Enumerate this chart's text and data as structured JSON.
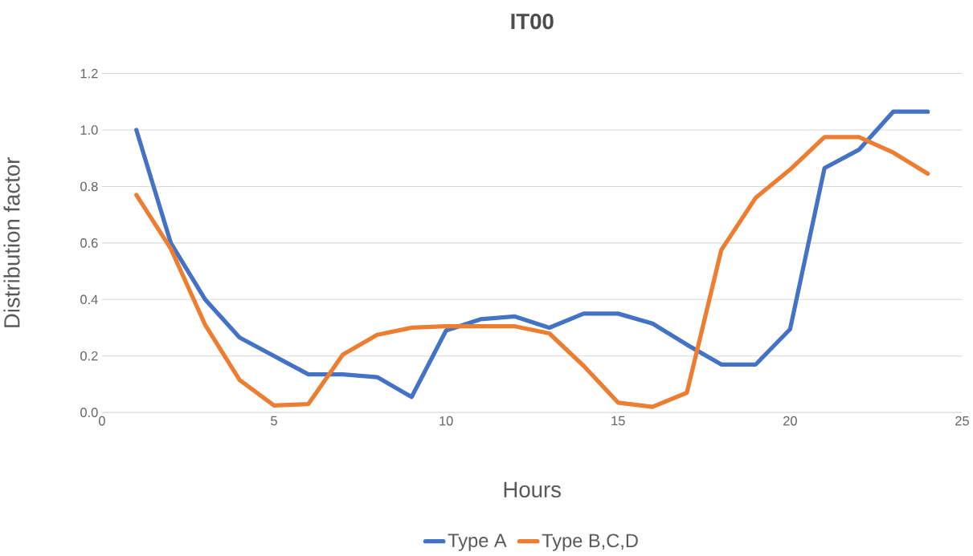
{
  "chart_data": {
    "type": "line",
    "title": "IT00",
    "xlabel": "Hours",
    "ylabel": "Distribution factor",
    "x": [
      1,
      2,
      3,
      4,
      5,
      6,
      7,
      8,
      9,
      10,
      11,
      12,
      13,
      14,
      15,
      16,
      17,
      18,
      19,
      20,
      21,
      22,
      23,
      24
    ],
    "series": [
      {
        "name": "Type A",
        "color": "#4472c4",
        "values": [
          1.0,
          0.6,
          0.4,
          0.265,
          0.2,
          0.135,
          0.135,
          0.125,
          0.055,
          0.29,
          0.33,
          0.34,
          0.3,
          0.35,
          0.35,
          0.315,
          0.24,
          0.17,
          0.17,
          0.295,
          0.865,
          0.93,
          1.065,
          1.065
        ]
      },
      {
        "name": "Type B,C,D",
        "color": "#ed7d31",
        "values": [
          0.77,
          0.58,
          0.31,
          0.115,
          0.025,
          0.03,
          0.205,
          0.275,
          0.3,
          0.305,
          0.305,
          0.305,
          0.28,
          0.165,
          0.035,
          0.02,
          0.07,
          0.575,
          0.76,
          0.86,
          0.975,
          0.975,
          0.92,
          0.845
        ]
      }
    ],
    "xlim": [
      0,
      25
    ],
    "ylim": [
      0,
      1.2
    ],
    "xticks": [
      0,
      5,
      10,
      15,
      20,
      25
    ],
    "yticks": [
      {
        "value": 0,
        "label": "0.0"
      },
      {
        "value": 0.2,
        "label": "0.2"
      },
      {
        "value": 0.4,
        "label": "0.4"
      },
      {
        "value": 0.6,
        "label": "0.6"
      },
      {
        "value": 0.8,
        "label": "0.8"
      },
      {
        "value": 1.0,
        "label": "1.0"
      },
      {
        "value": 1.2,
        "label": "1.2"
      }
    ],
    "grid": "y",
    "legend": "bottom",
    "marker": "none",
    "line_style": "solid"
  }
}
